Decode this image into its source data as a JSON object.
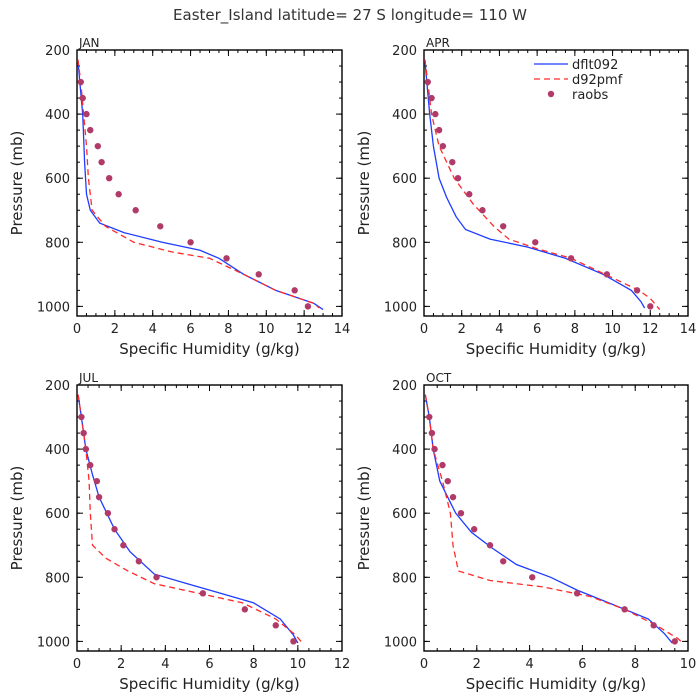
{
  "title": "Easter_Island  latitude= 27 S longitude= 110 W",
  "colors": {
    "model": "#1e3cff",
    "control": "#ff2a2a",
    "obs": "#b03a68",
    "axis": "#000000"
  },
  "legend": {
    "position": "top-right of APR panel",
    "entries": [
      {
        "label": "dflt092",
        "style": "solid line",
        "color": "#1e3cff"
      },
      {
        "label": "d92pmf",
        "style": "dashed line",
        "color": "#ff2a2a"
      },
      {
        "label": "raobs",
        "style": "dots",
        "color": "#b03a68"
      }
    ]
  },
  "chart_data": [
    {
      "type": "line",
      "panel": "JAN",
      "xlabel": "Specific Humidity (g/kg)",
      "ylabel": "Pressure (mb)",
      "xlim": [
        0,
        14
      ],
      "xticks": [
        0,
        2,
        4,
        6,
        8,
        10,
        12,
        14
      ],
      "ylim": [
        200,
        1030
      ],
      "yticks": [
        200,
        400,
        600,
        800,
        1000
      ],
      "y_inverted": true,
      "series": [
        {
          "name": "dflt092",
          "points": [
            [
              0.05,
              230
            ],
            [
              0.15,
              300
            ],
            [
              0.3,
              400
            ],
            [
              0.4,
              550
            ],
            [
              0.5,
              650
            ],
            [
              0.7,
              700
            ],
            [
              1.2,
              740
            ],
            [
              2.5,
              770
            ],
            [
              4.5,
              800
            ],
            [
              6.5,
              825
            ],
            [
              7.5,
              850
            ],
            [
              8.8,
              900
            ],
            [
              10.5,
              950
            ],
            [
              12.5,
              990
            ],
            [
              13.0,
              1010
            ]
          ]
        },
        {
          "name": "d92pmf",
          "points": [
            [
              0.05,
              230
            ],
            [
              0.2,
              300
            ],
            [
              0.35,
              400
            ],
            [
              0.5,
              500
            ],
            [
              0.6,
              600
            ],
            [
              0.8,
              700
            ],
            [
              1.5,
              750
            ],
            [
              3.0,
              800
            ],
            [
              5.0,
              830
            ],
            [
              7.0,
              850
            ],
            [
              8.8,
              900
            ],
            [
              10.5,
              950
            ],
            [
              12.5,
              990
            ],
            [
              12.8,
              1005
            ]
          ]
        },
        {
          "name": "raobs",
          "points": [
            [
              0.2,
              300
            ],
            [
              0.3,
              350
            ],
            [
              0.5,
              400
            ],
            [
              0.7,
              450
            ],
            [
              1.1,
              500
            ],
            [
              1.3,
              550
            ],
            [
              1.7,
              600
            ],
            [
              2.2,
              650
            ],
            [
              3.1,
              700
            ],
            [
              4.4,
              750
            ],
            [
              6.0,
              800
            ],
            [
              7.9,
              850
            ],
            [
              9.6,
              900
            ],
            [
              11.5,
              950
            ],
            [
              12.2,
              1000
            ]
          ]
        }
      ]
    },
    {
      "type": "line",
      "panel": "APR",
      "xlabel": "Specific Humidity (g/kg)",
      "ylabel": "Pressure (mb)",
      "xlim": [
        0,
        14
      ],
      "xticks": [
        0,
        2,
        4,
        6,
        8,
        10,
        12,
        14
      ],
      "ylim": [
        200,
        1030
      ],
      "yticks": [
        200,
        400,
        600,
        800,
        1000
      ],
      "y_inverted": true,
      "series": [
        {
          "name": "dflt092",
          "points": [
            [
              0.05,
              230
            ],
            [
              0.15,
              300
            ],
            [
              0.3,
              400
            ],
            [
              0.5,
              500
            ],
            [
              0.8,
              600
            ],
            [
              1.2,
              660
            ],
            [
              1.7,
              720
            ],
            [
              2.2,
              760
            ],
            [
              3.5,
              790
            ],
            [
              5.5,
              815
            ],
            [
              7.5,
              850
            ],
            [
              9.5,
              900
            ],
            [
              11.0,
              950
            ],
            [
              11.5,
              985
            ],
            [
              11.7,
              1005
            ]
          ]
        },
        {
          "name": "d92pmf",
          "points": [
            [
              0.05,
              230
            ],
            [
              0.2,
              300
            ],
            [
              0.4,
              400
            ],
            [
              0.8,
              500
            ],
            [
              1.6,
              600
            ],
            [
              2.6,
              680
            ],
            [
              3.7,
              750
            ],
            [
              4.5,
              790
            ],
            [
              6.0,
              820
            ],
            [
              7.8,
              850
            ],
            [
              9.6,
              900
            ],
            [
              11.4,
              950
            ],
            [
              12.0,
              975
            ],
            [
              12.5,
              1010
            ]
          ]
        },
        {
          "name": "raobs",
          "points": [
            [
              0.2,
              300
            ],
            [
              0.4,
              350
            ],
            [
              0.6,
              400
            ],
            [
              0.8,
              450
            ],
            [
              1.0,
              500
            ],
            [
              1.5,
              550
            ],
            [
              1.8,
              600
            ],
            [
              2.4,
              650
            ],
            [
              3.1,
              700
            ],
            [
              4.2,
              750
            ],
            [
              5.9,
              800
            ],
            [
              7.8,
              850
            ],
            [
              9.7,
              900
            ],
            [
              11.3,
              950
            ],
            [
              12.0,
              1000
            ]
          ]
        }
      ]
    },
    {
      "type": "line",
      "panel": "JUL",
      "xlabel": "Specific Humidity (g/kg)",
      "ylabel": "Pressure (mb)",
      "xlim": [
        0,
        12
      ],
      "xticks": [
        0,
        2,
        4,
        6,
        8,
        10,
        12
      ],
      "ylim": [
        200,
        1030
      ],
      "yticks": [
        200,
        400,
        600,
        800,
        1000
      ],
      "y_inverted": true,
      "series": [
        {
          "name": "dflt092",
          "points": [
            [
              0.05,
              230
            ],
            [
              0.2,
              300
            ],
            [
              0.4,
              400
            ],
            [
              0.7,
              480
            ],
            [
              1.0,
              550
            ],
            [
              1.7,
              650
            ],
            [
              2.4,
              720
            ],
            [
              3.5,
              790
            ],
            [
              5.0,
              820
            ],
            [
              6.5,
              850
            ],
            [
              8.0,
              880
            ],
            [
              9.2,
              930
            ],
            [
              9.8,
              980
            ],
            [
              10.0,
              1005
            ]
          ]
        },
        {
          "name": "d92pmf",
          "points": [
            [
              0.05,
              230
            ],
            [
              0.2,
              300
            ],
            [
              0.4,
              400
            ],
            [
              0.55,
              500
            ],
            [
              0.6,
              600
            ],
            [
              0.7,
              700
            ],
            [
              1.3,
              740
            ],
            [
              2.3,
              780
            ],
            [
              3.5,
              820
            ],
            [
              5.5,
              850
            ],
            [
              7.5,
              880
            ],
            [
              9.0,
              930
            ],
            [
              9.9,
              980
            ],
            [
              10.2,
              1005
            ]
          ]
        },
        {
          "name": "raobs",
          "points": [
            [
              0.2,
              300
            ],
            [
              0.3,
              350
            ],
            [
              0.4,
              400
            ],
            [
              0.6,
              450
            ],
            [
              0.9,
              500
            ],
            [
              1.0,
              550
            ],
            [
              1.4,
              600
            ],
            [
              1.7,
              650
            ],
            [
              2.1,
              700
            ],
            [
              2.8,
              750
            ],
            [
              3.6,
              800
            ],
            [
              5.7,
              850
            ],
            [
              7.6,
              900
            ],
            [
              9.0,
              950
            ],
            [
              9.8,
              1000
            ]
          ]
        }
      ]
    },
    {
      "type": "line",
      "panel": "OCT",
      "xlabel": "Specific Humidity (g/kg)",
      "ylabel": "Pressure (mb)",
      "xlim": [
        0,
        10
      ],
      "xticks": [
        0,
        2,
        4,
        6,
        8,
        10
      ],
      "ylim": [
        200,
        1030
      ],
      "yticks": [
        200,
        400,
        600,
        800,
        1000
      ],
      "y_inverted": true,
      "series": [
        {
          "name": "dflt092",
          "points": [
            [
              0.05,
              230
            ],
            [
              0.2,
              300
            ],
            [
              0.35,
              400
            ],
            [
              0.6,
              500
            ],
            [
              1.2,
              600
            ],
            [
              1.8,
              660
            ],
            [
              2.6,
              710
            ],
            [
              3.5,
              760
            ],
            [
              4.8,
              800
            ],
            [
              5.8,
              840
            ],
            [
              7.0,
              880
            ],
            [
              8.5,
              930
            ],
            [
              9.1,
              975
            ],
            [
              9.4,
              1005
            ]
          ]
        },
        {
          "name": "d92pmf",
          "points": [
            [
              0.05,
              230
            ],
            [
              0.2,
              300
            ],
            [
              0.35,
              400
            ],
            [
              0.7,
              500
            ],
            [
              1.0,
              600
            ],
            [
              1.1,
              700
            ],
            [
              1.3,
              780
            ],
            [
              2.5,
              810
            ],
            [
              4.5,
              830
            ],
            [
              6.3,
              860
            ],
            [
              7.6,
              900
            ],
            [
              8.8,
              950
            ],
            [
              9.6,
              990
            ],
            [
              9.8,
              1005
            ]
          ]
        },
        {
          "name": "raobs",
          "points": [
            [
              0.2,
              300
            ],
            [
              0.3,
              350
            ],
            [
              0.4,
              400
            ],
            [
              0.7,
              450
            ],
            [
              0.9,
              500
            ],
            [
              1.1,
              550
            ],
            [
              1.4,
              600
            ],
            [
              1.9,
              650
            ],
            [
              2.5,
              700
            ],
            [
              3.0,
              750
            ],
            [
              4.1,
              800
            ],
            [
              5.8,
              850
            ],
            [
              7.6,
              900
            ],
            [
              8.7,
              950
            ],
            [
              9.5,
              1000
            ]
          ]
        }
      ]
    }
  ]
}
